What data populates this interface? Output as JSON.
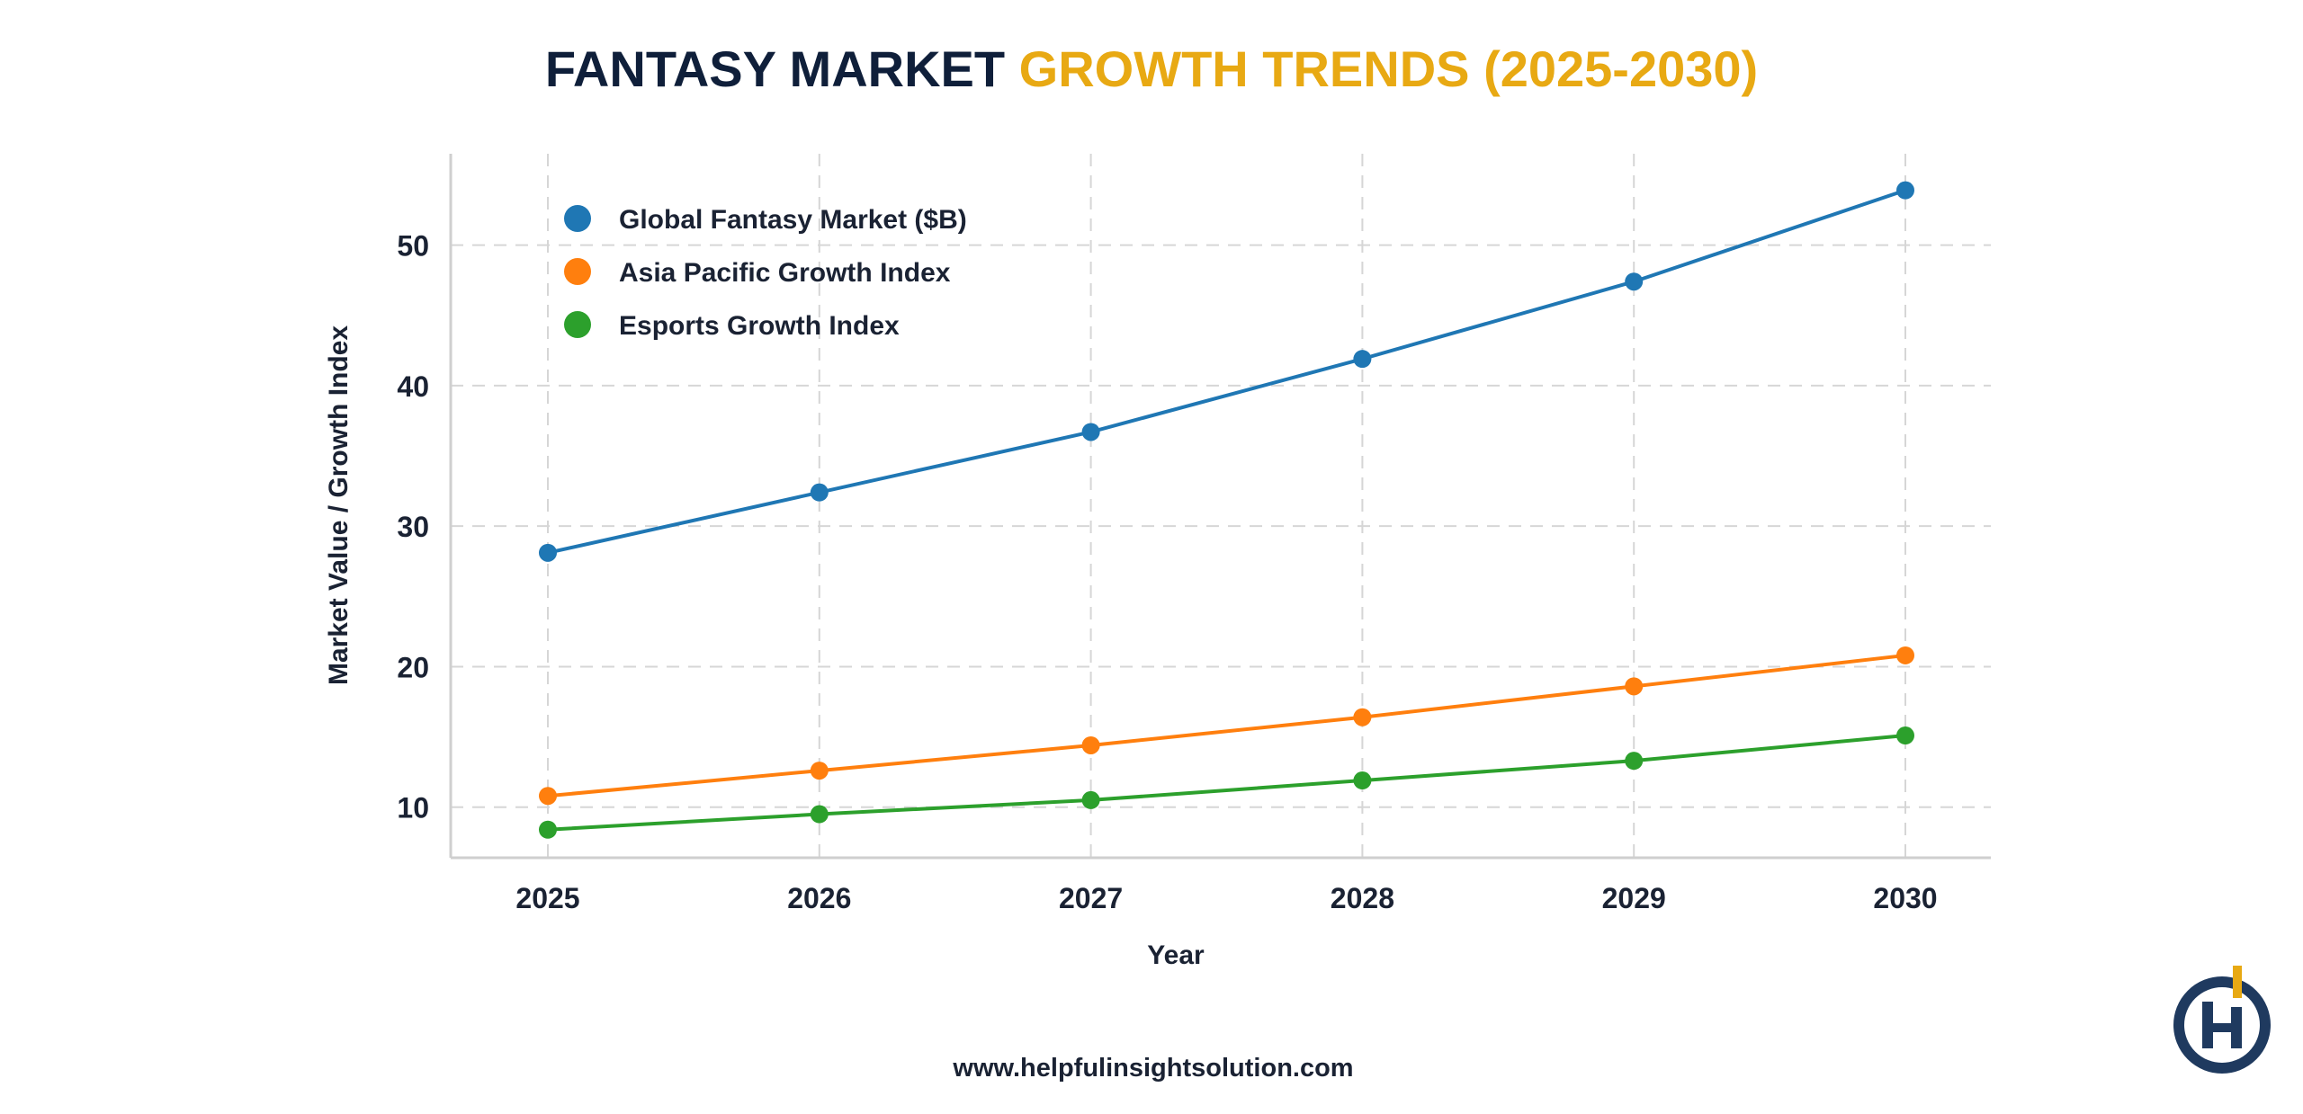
{
  "title": {
    "part1": "FANTASY MARKET",
    "part2": "GROWTH TRENDS (2025-2030)",
    "color1": "#0f1f3a",
    "color2": "#e8a913"
  },
  "footer": {
    "website": "www.helpfulinsightsolution.com"
  },
  "logo": {
    "icon": "helpful-insight-logo",
    "text": "Hi",
    "colors": [
      "#1f3a5f",
      "#e8a913"
    ]
  },
  "chart_data": {
    "type": "line",
    "title": "FANTASY MARKET GROWTH TRENDS (2025-2030)",
    "xlabel": "Year",
    "ylabel": "Market Value / Growth Index",
    "x": [
      "2025",
      "2026",
      "2027",
      "2028",
      "2029",
      "2030"
    ],
    "yticks": [
      10,
      20,
      30,
      40,
      50
    ],
    "ylim": [
      6.4,
      56.5
    ],
    "grid": true,
    "legend_position": "top-left",
    "series": [
      {
        "name": "Global Fantasy Market ($B)",
        "color": "#1f77b4",
        "values": [
          28.1,
          32.4,
          36.7,
          41.9,
          47.4,
          53.9
        ]
      },
      {
        "name": "Asia Pacific Growth Index",
        "color": "#ff7f0e",
        "values": [
          10.8,
          12.6,
          14.4,
          16.4,
          18.6,
          20.8
        ]
      },
      {
        "name": "Esports Growth Index",
        "color": "#2ca02c",
        "values": [
          8.4,
          9.5,
          10.5,
          11.9,
          13.3,
          15.1
        ]
      }
    ]
  }
}
